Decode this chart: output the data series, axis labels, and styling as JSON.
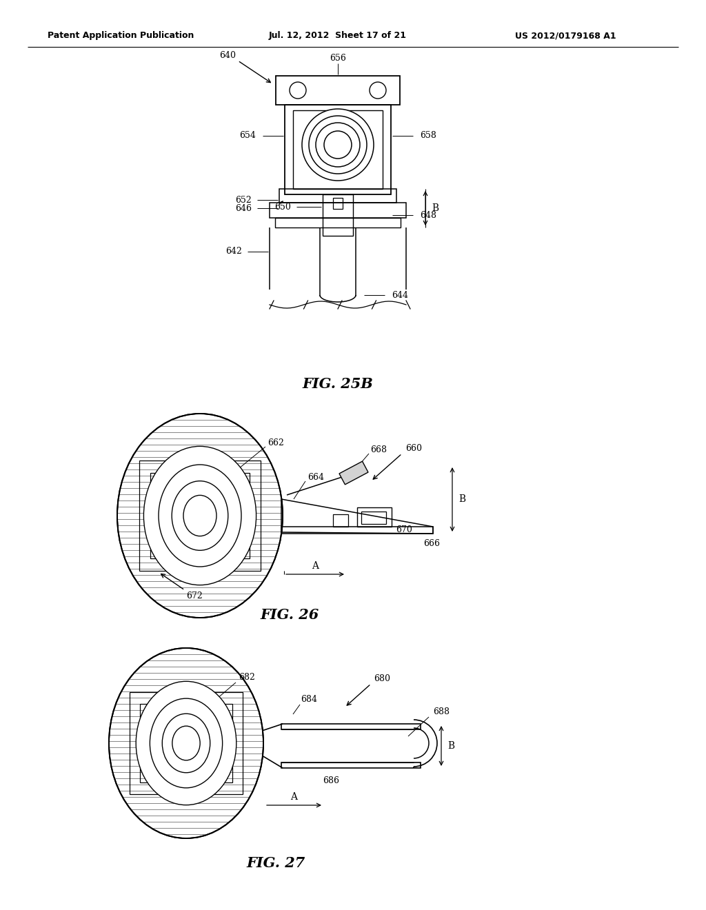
{
  "bg_color": "#ffffff",
  "line_color": "#000000",
  "header_left": "Patent Application Publication",
  "header_mid": "Jul. 12, 2012  Sheet 17 of 21",
  "header_right": "US 2012/0179168 A1",
  "fig25b_title": "FIG. 25B",
  "fig26_title": "FIG. 26",
  "fig27_title": "FIG. 27"
}
